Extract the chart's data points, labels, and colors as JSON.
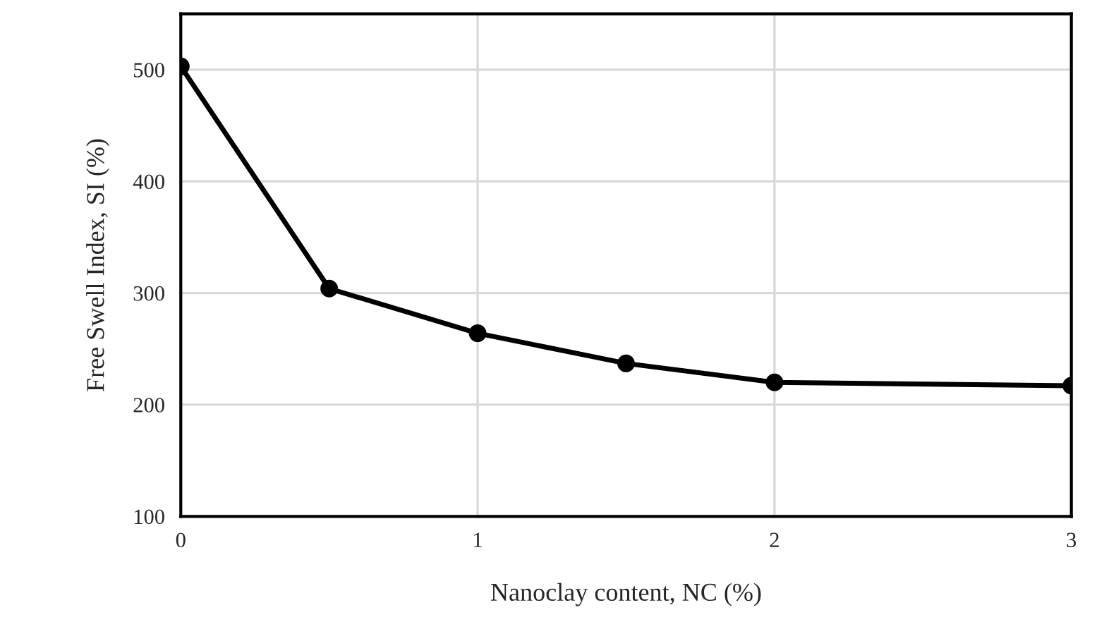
{
  "chart_data": {
    "type": "line",
    "xlabel": "Nanoclay content, NC (%)",
    "ylabel": "Free Swell Index, SI (%)",
    "x": [
      0,
      0.5,
      1,
      1.5,
      2,
      3
    ],
    "series": [
      {
        "color": "#000000",
        "values": [
          503,
          304,
          264,
          237,
          220,
          217
        ]
      }
    ],
    "xlim": [
      0,
      3
    ],
    "xticks": [
      0,
      1,
      2,
      3
    ],
    "ylim": [
      100,
      550
    ],
    "yticks": [
      100,
      200,
      300,
      400,
      500
    ],
    "grid": true,
    "marker": "circle",
    "line_style": "solid"
  }
}
